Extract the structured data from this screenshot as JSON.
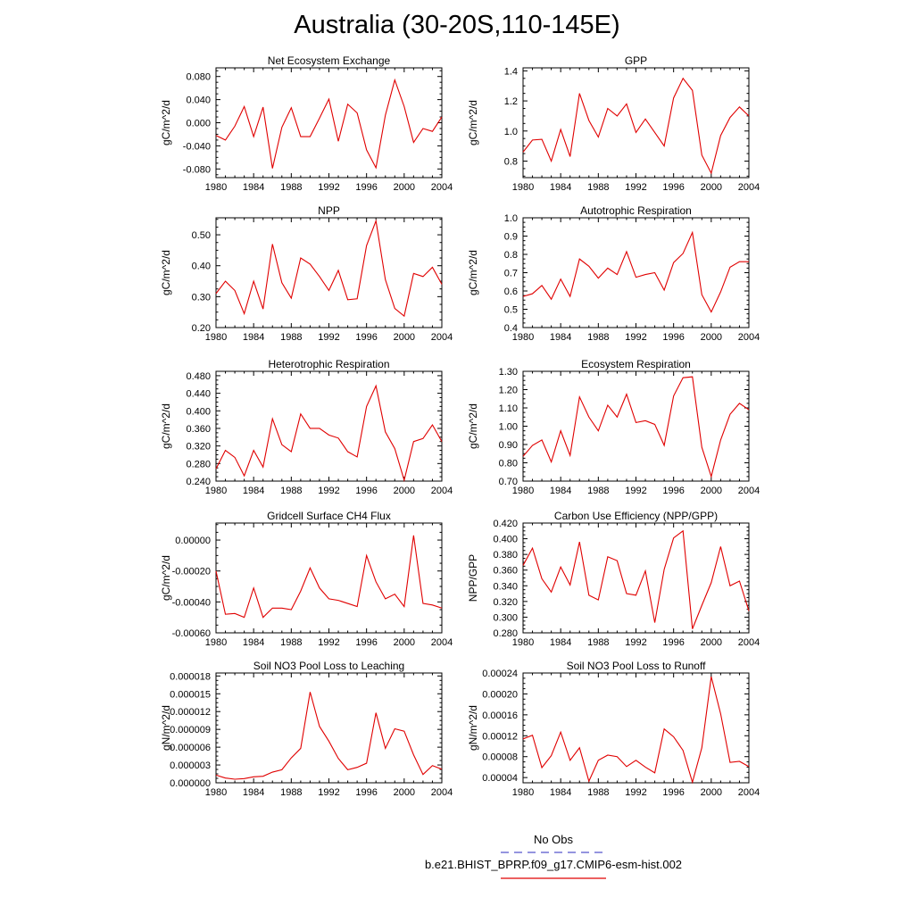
{
  "page_title": "Australia (30-20S,110-145E)",
  "colors": {
    "model_line": "#e00000",
    "obs_line": "#5555cc",
    "axis": "#000000"
  },
  "legend": {
    "obs_label": "No Obs",
    "model_label": "b.e21.BHIST_BPRP.f09_g17.CMIP6-esm-hist.002"
  },
  "chart_data": [
    {
      "type": "line",
      "title": "Net Ecosystem Exchange",
      "ylabel": "gC/m^2/d",
      "xlim": [
        1980,
        2004
      ],
      "ylim": [
        -0.095,
        0.095
      ],
      "xticks": [
        1980,
        1984,
        1988,
        1992,
        1996,
        2000,
        2004
      ],
      "yticks": [
        -0.08,
        -0.04,
        0.0,
        0.04,
        0.08
      ],
      "ytick_labels": [
        "-0.080",
        "-0.040",
        "0.000",
        "0.040",
        "0.080"
      ],
      "x": [
        1980,
        1981,
        1982,
        1983,
        1984,
        1985,
        1986,
        1987,
        1988,
        1989,
        1990,
        1991,
        1992,
        1993,
        1994,
        1995,
        1996,
        1997,
        1998,
        1999,
        2000,
        2001,
        2002,
        2003,
        2004
      ],
      "values": [
        -0.022,
        -0.03,
        -0.006,
        0.028,
        -0.024,
        0.027,
        -0.079,
        -0.008,
        0.026,
        -0.024,
        -0.024,
        0.008,
        0.041,
        -0.032,
        0.032,
        0.017,
        -0.047,
        -0.078,
        0.013,
        0.074,
        0.028,
        -0.034,
        -0.01,
        -0.015,
        0.01
      ]
    },
    {
      "type": "line",
      "title": "GPP",
      "ylabel": "gC/m^2/d",
      "xlim": [
        1980,
        2004
      ],
      "ylim": [
        0.69,
        1.42
      ],
      "xticks": [
        1980,
        1984,
        1988,
        1992,
        1996,
        2000,
        2004
      ],
      "yticks": [
        0.8,
        1.0,
        1.2,
        1.4
      ],
      "ytick_labels": [
        "0.8",
        "1.0",
        "1.2",
        "1.4"
      ],
      "x": [
        1980,
        1981,
        1982,
        1983,
        1984,
        1985,
        1986,
        1987,
        1988,
        1989,
        1990,
        1991,
        1992,
        1993,
        1994,
        1995,
        1996,
        1997,
        1998,
        1999,
        2000,
        2001,
        2002,
        2003,
        2004
      ],
      "values": [
        0.86,
        0.94,
        0.945,
        0.8,
        1.01,
        0.83,
        1.25,
        1.07,
        0.96,
        1.15,
        1.1,
        1.18,
        0.99,
        1.08,
        0.99,
        0.9,
        1.22,
        1.35,
        1.27,
        0.84,
        0.72,
        0.97,
        1.09,
        1.16,
        1.1
      ]
    },
    {
      "type": "line",
      "title": "NPP",
      "ylabel": "gC/m^2/d",
      "xlim": [
        1980,
        2004
      ],
      "ylim": [
        0.2,
        0.555
      ],
      "xticks": [
        1980,
        1984,
        1988,
        1992,
        1996,
        2000,
        2004
      ],
      "yticks": [
        0.2,
        0.3,
        0.4,
        0.5
      ],
      "ytick_labels": [
        "0.20",
        "0.30",
        "0.40",
        "0.50"
      ],
      "x": [
        1980,
        1981,
        1982,
        1983,
        1984,
        1985,
        1986,
        1987,
        1988,
        1989,
        1990,
        1991,
        1992,
        1993,
        1994,
        1995,
        1996,
        1997,
        1998,
        1999,
        2000,
        2001,
        2002,
        2003,
        2004
      ],
      "values": [
        0.31,
        0.35,
        0.32,
        0.245,
        0.35,
        0.26,
        0.47,
        0.345,
        0.295,
        0.425,
        0.405,
        0.365,
        0.32,
        0.385,
        0.29,
        0.293,
        0.465,
        0.545,
        0.355,
        0.262,
        0.237,
        0.375,
        0.365,
        0.395,
        0.34
      ]
    },
    {
      "type": "line",
      "title": "Autotrophic Respiration",
      "ylabel": "gC/m^2/d",
      "xlim": [
        1980,
        2004
      ],
      "ylim": [
        0.4,
        1.0
      ],
      "xticks": [
        1980,
        1984,
        1988,
        1992,
        1996,
        2000,
        2004
      ],
      "yticks": [
        0.4,
        0.5,
        0.6,
        0.7,
        0.8,
        0.9,
        1.0
      ],
      "ytick_labels": [
        "0.4",
        "0.5",
        "0.6",
        "0.7",
        "0.8",
        "0.9",
        "1.0"
      ],
      "x": [
        1980,
        1981,
        1982,
        1983,
        1984,
        1985,
        1986,
        1987,
        1988,
        1989,
        1990,
        1991,
        1992,
        1993,
        1994,
        1995,
        1996,
        1997,
        1998,
        1999,
        2000,
        2001,
        2002,
        2003,
        2004
      ],
      "values": [
        0.57,
        0.585,
        0.63,
        0.555,
        0.665,
        0.57,
        0.775,
        0.735,
        0.67,
        0.725,
        0.69,
        0.815,
        0.675,
        0.69,
        0.7,
        0.605,
        0.755,
        0.805,
        0.92,
        0.58,
        0.485,
        0.595,
        0.73,
        0.76,
        0.76
      ]
    },
    {
      "type": "line",
      "title": "Heterotrophic Respiration",
      "ylabel": "gC/m^2/d",
      "xlim": [
        1980,
        2004
      ],
      "ylim": [
        0.24,
        0.49
      ],
      "xticks": [
        1980,
        1984,
        1988,
        1992,
        1996,
        2000,
        2004
      ],
      "yticks": [
        0.24,
        0.28,
        0.32,
        0.36,
        0.4,
        0.44,
        0.48
      ],
      "ytick_labels": [
        "0.240",
        "0.280",
        "0.320",
        "0.360",
        "0.400",
        "0.440",
        "0.480"
      ],
      "x": [
        1980,
        1981,
        1982,
        1983,
        1984,
        1985,
        1986,
        1987,
        1988,
        1989,
        1990,
        1991,
        1992,
        1993,
        1994,
        1995,
        1996,
        1997,
        1998,
        1999,
        2000,
        2001,
        2002,
        2003,
        2004
      ],
      "values": [
        0.268,
        0.31,
        0.294,
        0.252,
        0.31,
        0.272,
        0.382,
        0.323,
        0.307,
        0.393,
        0.36,
        0.36,
        0.345,
        0.338,
        0.307,
        0.295,
        0.41,
        0.457,
        0.352,
        0.314,
        0.242,
        0.33,
        0.337,
        0.368,
        0.33
      ]
    },
    {
      "type": "line",
      "title": "Ecosystem Respiration",
      "ylabel": "gC/m^2/d",
      "xlim": [
        1980,
        2004
      ],
      "ylim": [
        0.7,
        1.3
      ],
      "xticks": [
        1980,
        1984,
        1988,
        1992,
        1996,
        2000,
        2004
      ],
      "yticks": [
        0.7,
        0.8,
        0.9,
        1.0,
        1.1,
        1.2,
        1.3
      ],
      "ytick_labels": [
        "0.70",
        "0.80",
        "0.90",
        "1.00",
        "1.10",
        "1.20",
        "1.30"
      ],
      "x": [
        1980,
        1981,
        1982,
        1983,
        1984,
        1985,
        1986,
        1987,
        1988,
        1989,
        1990,
        1991,
        1992,
        1993,
        1994,
        1995,
        1996,
        1997,
        1998,
        1999,
        2000,
        2001,
        2002,
        2003,
        2004
      ],
      "values": [
        0.835,
        0.895,
        0.925,
        0.805,
        0.975,
        0.84,
        1.16,
        1.05,
        0.975,
        1.115,
        1.05,
        1.175,
        1.02,
        1.03,
        1.01,
        0.895,
        1.165,
        1.265,
        1.27,
        0.885,
        0.725,
        0.925,
        1.065,
        1.125,
        1.09
      ]
    },
    {
      "type": "line",
      "title": "Gridcell Surface CH4 Flux",
      "ylabel": "gC/m^2/d",
      "xlim": [
        1980,
        2004
      ],
      "ylim": [
        -0.0006,
        0.00011
      ],
      "xticks": [
        1980,
        1984,
        1988,
        1992,
        1996,
        2000,
        2004
      ],
      "yticks": [
        -0.0006,
        -0.0004,
        -0.0002,
        0.0
      ],
      "ytick_labels": [
        "-0.00060",
        "-0.00040",
        "-0.00020",
        "0.00000"
      ],
      "x": [
        1980,
        1981,
        1982,
        1983,
        1984,
        1985,
        1986,
        1987,
        1988,
        1989,
        1990,
        1991,
        1992,
        1993,
        1994,
        1995,
        1996,
        1997,
        1998,
        1999,
        2000,
        2001,
        2002,
        2003,
        2004
      ],
      "values": [
        -0.0002,
        -0.00048,
        -0.000475,
        -0.0005,
        -0.00031,
        -0.0005,
        -0.00044,
        -0.00044,
        -0.00045,
        -0.00033,
        -0.00018,
        -0.00031,
        -0.00038,
        -0.00039,
        -0.00041,
        -0.00043,
        -0.0001,
        -0.00027,
        -0.00038,
        -0.00035,
        -0.00043,
        3e-05,
        -0.00041,
        -0.00042,
        -0.00044
      ]
    },
    {
      "type": "line",
      "title": "Carbon Use Efficiency (NPP/GPP)",
      "ylabel": "NPP/GPP",
      "xlim": [
        1980,
        2004
      ],
      "ylim": [
        0.28,
        0.42
      ],
      "xticks": [
        1980,
        1984,
        1988,
        1992,
        1996,
        2000,
        2004
      ],
      "yticks": [
        0.28,
        0.3,
        0.32,
        0.34,
        0.36,
        0.38,
        0.4,
        0.42
      ],
      "ytick_labels": [
        "0.280",
        "0.300",
        "0.320",
        "0.340",
        "0.360",
        "0.380",
        "0.400",
        "0.420"
      ],
      "x": [
        1980,
        1981,
        1982,
        1983,
        1984,
        1985,
        1986,
        1987,
        1988,
        1989,
        1990,
        1991,
        1992,
        1993,
        1994,
        1995,
        1996,
        1997,
        1998,
        1999,
        2000,
        2001,
        2002,
        2003,
        2004
      ],
      "values": [
        0.366,
        0.388,
        0.349,
        0.332,
        0.364,
        0.341,
        0.396,
        0.328,
        0.322,
        0.377,
        0.372,
        0.33,
        0.328,
        0.359,
        0.293,
        0.361,
        0.401,
        0.41,
        0.285,
        0.315,
        0.344,
        0.39,
        0.34,
        0.346,
        0.308
      ]
    },
    {
      "type": "line",
      "title": "Soil NO3 Pool Loss to Leaching",
      "ylabel": "gN/m^2/d",
      "xlim": [
        1980,
        2004
      ],
      "ylim": [
        0.0,
        1.85e-05
      ],
      "xticks": [
        1980,
        1984,
        1988,
        1992,
        1996,
        2000,
        2004
      ],
      "yticks": [
        0.0,
        3e-06,
        6e-06,
        9e-06,
        1.2e-05,
        1.5e-05,
        1.8e-05
      ],
      "ytick_labels": [
        "0.000000",
        "0.000003",
        "0.000006",
        "0.000009",
        "0.000012",
        "0.000015",
        "0.000018"
      ],
      "x": [
        1980,
        1981,
        1982,
        1983,
        1984,
        1985,
        1986,
        1987,
        1988,
        1989,
        1990,
        1991,
        1992,
        1993,
        1994,
        1995,
        1996,
        1997,
        1998,
        1999,
        2000,
        2001,
        2002,
        2003,
        2004
      ],
      "values": [
        1.3e-06,
        8e-07,
        6e-07,
        7e-07,
        1e-06,
        1.1e-06,
        1.8e-06,
        2.2e-06,
        4.2e-06,
        5.8e-06,
        1.53e-05,
        9.5e-06,
        7e-06,
        4.1e-06,
        2.2e-06,
        2.6e-06,
        3.3e-06,
        1.18e-05,
        5.8e-06,
        9.1e-06,
        8.7e-06,
        4.7e-06,
        1.4e-06,
        2.9e-06,
        2.3e-06
      ]
    },
    {
      "type": "line",
      "title": "Soil NO3 Pool Loss to Runoff",
      "ylabel": "gN/m^2/d",
      "xlim": [
        1980,
        2004
      ],
      "ylim": [
        3e-05,
        0.00024
      ],
      "xticks": [
        1980,
        1984,
        1988,
        1992,
        1996,
        2000,
        2004
      ],
      "yticks": [
        4e-05,
        8e-05,
        0.00012,
        0.00016,
        0.0002,
        0.00024
      ],
      "ytick_labels": [
        "0.00004",
        "0.00008",
        "0.00012",
        "0.00016",
        "0.00020",
        "0.00024"
      ],
      "x": [
        1980,
        1981,
        1982,
        1983,
        1984,
        1985,
        1986,
        1987,
        1988,
        1989,
        1990,
        1991,
        1992,
        1993,
        1994,
        1995,
        1996,
        1997,
        1998,
        1999,
        2000,
        2001,
        2002,
        2003,
        2004
      ],
      "values": [
        0.000114,
        0.000121,
        5.9e-05,
        8.2e-05,
        0.000127,
        7.3e-05,
        9.7e-05,
        3.3e-05,
        7.3e-05,
        8.3e-05,
        8e-05,
        6.1e-05,
        7.3e-05,
        6e-05,
        4.9e-05,
        0.000133,
        0.000118,
        9.2e-05,
        3.1e-05,
        9.7e-05,
        0.000233,
        0.000162,
        6.9e-05,
        7.1e-05,
        6.1e-05
      ]
    }
  ]
}
